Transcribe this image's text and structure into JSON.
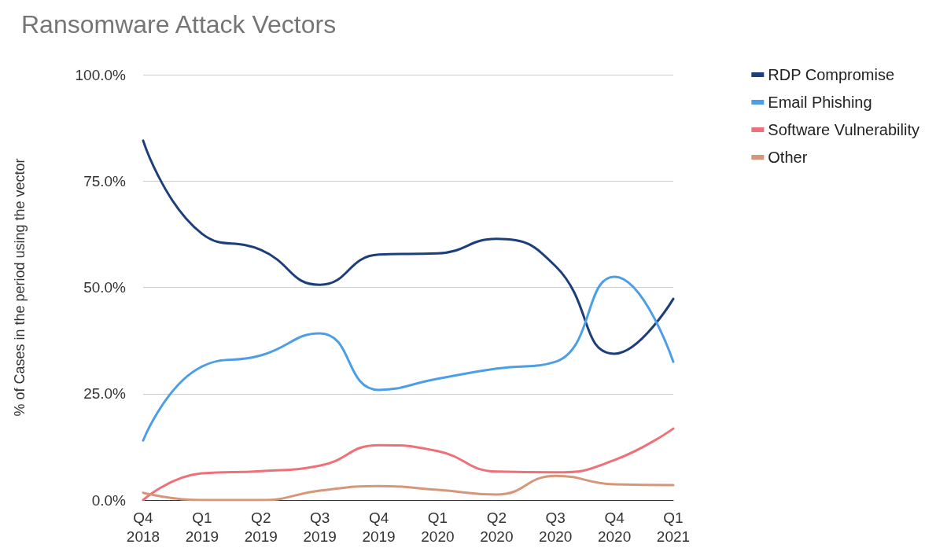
{
  "chart_data": {
    "type": "line",
    "title": "Ransomware Attack Vectors",
    "ylabel": "% of Cases in the period using the vector",
    "categories": [
      "Q4 2018",
      "Q1 2019",
      "Q2 2019",
      "Q3 2019",
      "Q4 2019",
      "Q1 2020",
      "Q2 2020",
      "Q3 2020",
      "Q4 2020",
      "Q1 2021"
    ],
    "series": [
      {
        "name": "RDP Compromise",
        "color": "#1c3f7c",
        "values": [
          84.5,
          62.6,
          58.8,
          50.6,
          57.7,
          58.0,
          61.4,
          55.0,
          34.4,
          47.3
        ]
      },
      {
        "name": "Email Phishing",
        "color": "#4c9fe6",
        "values": [
          14.0,
          31.4,
          34.0,
          39.2,
          25.9,
          28.5,
          30.9,
          32.5,
          52.5,
          32.5
        ]
      },
      {
        "name": "Software Vulnerability",
        "color": "#ee7179",
        "values": [
          0.0,
          6.3,
          6.8,
          8.1,
          12.9,
          11.5,
          6.7,
          6.5,
          9.4,
          16.8
        ]
      },
      {
        "name": "Other",
        "color": "#d6967a",
        "values": [
          1.7,
          0.0,
          0.0,
          2.2,
          3.3,
          2.4,
          1.3,
          5.7,
          3.7,
          3.5
        ]
      }
    ],
    "ylim": [
      0,
      100
    ],
    "yticks": [
      {
        "value": 0,
        "label": "0.0%"
      },
      {
        "value": 25,
        "label": "25.0%"
      },
      {
        "value": 50,
        "label": "50.0%"
      },
      {
        "value": 75,
        "label": "75.0%"
      },
      {
        "value": 100,
        "label": "100.0%"
      }
    ],
    "grid": "y",
    "legend": "top right",
    "marker": "none",
    "line_style": "solid"
  }
}
